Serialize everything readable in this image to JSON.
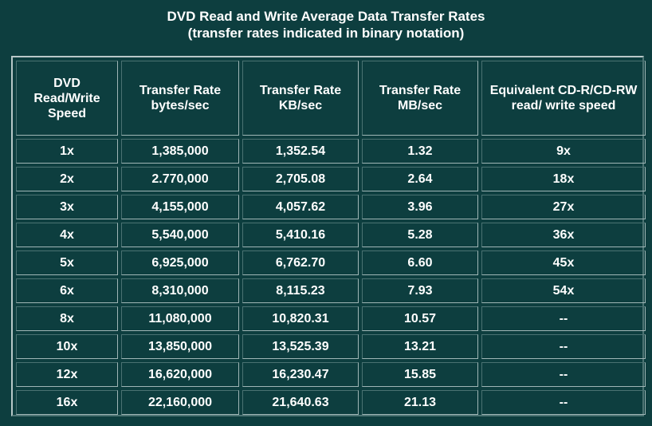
{
  "chart_data": {
    "type": "table",
    "title": "DVD Read and Write Average Data Transfer Rates",
    "subtitle": "(transfer rates indicated in binary notation)",
    "columns": [
      "DVD Read/Write Speed",
      "Transfer Rate bytes/sec",
      "Transfer Rate KB/sec",
      "Transfer Rate MB/sec",
      "Equivalent CD-R/CD-RW read/ write speed"
    ],
    "rows": [
      [
        "1x",
        "1,385,000",
        "1,352.54",
        "1.32",
        "9x"
      ],
      [
        "2x",
        "2.770,000",
        "2,705.08",
        "2.64",
        "18x"
      ],
      [
        "3x",
        "4,155,000",
        "4,057.62",
        "3.96",
        "27x"
      ],
      [
        "4x",
        "5,540,000",
        "5,410.16",
        "5.28",
        "36x"
      ],
      [
        "5x",
        "6,925,000",
        "6,762.70",
        "6.60",
        "45x"
      ],
      [
        "6x",
        "8,310,000",
        "8,115.23",
        "7.93",
        "54x"
      ],
      [
        "8x",
        "11,080,000",
        "10,820.31",
        "10.57",
        "--"
      ],
      [
        "10x",
        "13,850,000",
        "13,525.39",
        "13.21",
        "--"
      ],
      [
        "12x",
        "16,620,000",
        "16,230.47",
        "15.85",
        "--"
      ],
      [
        "16x",
        "22,160,000",
        "21,640.63",
        "21.13",
        "--"
      ]
    ]
  },
  "colors": {
    "background": "#0d3e3f",
    "text": "#ffffff",
    "border_light": "#b8c8c8",
    "border_dark": "#4a7272"
  }
}
